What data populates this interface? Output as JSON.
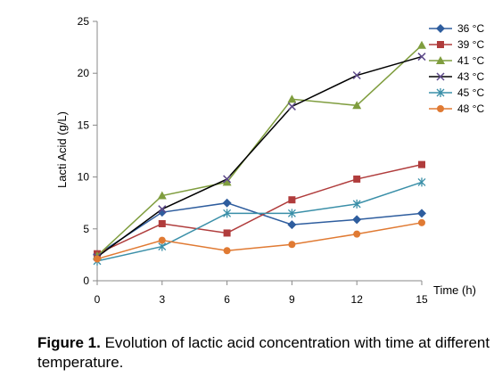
{
  "chart_data": {
    "type": "line",
    "xlabel": "Time (h)",
    "ylabel": "Lacti Acid (g/L)",
    "x": [
      0,
      3,
      6,
      9,
      12,
      15
    ],
    "xlim": [
      0,
      15
    ],
    "ylim": [
      0,
      25
    ],
    "xticks": [
      "0",
      "3",
      "6",
      "9",
      "12",
      "15"
    ],
    "yticks": [
      "0",
      "5",
      "10",
      "15",
      "20",
      "25"
    ],
    "grid": false,
    "legend_position": "top-right",
    "series": [
      {
        "name": "36 °C",
        "color": "#2e5d9e",
        "marker": "diamond",
        "values": [
          2.5,
          6.6,
          7.5,
          5.4,
          5.9,
          6.5
        ]
      },
      {
        "name": "39 °C",
        "color": "#b03c3c",
        "marker": "square",
        "values": [
          2.6,
          5.5,
          4.6,
          7.8,
          9.8,
          11.2
        ]
      },
      {
        "name": "41 °C",
        "color": "#7f9d3e",
        "marker": "triangle",
        "values": [
          2.4,
          8.2,
          9.5,
          17.5,
          16.9,
          22.7
        ]
      },
      {
        "name": "43 °C",
        "color": "#000000",
        "marker": "x",
        "markerColor": "#5e4a8b",
        "values": [
          2.3,
          6.9,
          9.8,
          16.8,
          19.8,
          21.6
        ]
      },
      {
        "name": "45 °C",
        "color": "#3a8fa8",
        "marker": "star",
        "values": [
          1.9,
          3.3,
          6.5,
          6.5,
          7.4,
          9.5
        ]
      },
      {
        "name": "48 °C",
        "color": "#e07a33",
        "marker": "circle",
        "values": [
          2.1,
          3.9,
          2.9,
          3.5,
          4.5,
          5.6
        ]
      }
    ]
  },
  "caption": {
    "label": "Figure 1.",
    "text": " Evolution of lactic acid concentration with time at different temperature."
  }
}
